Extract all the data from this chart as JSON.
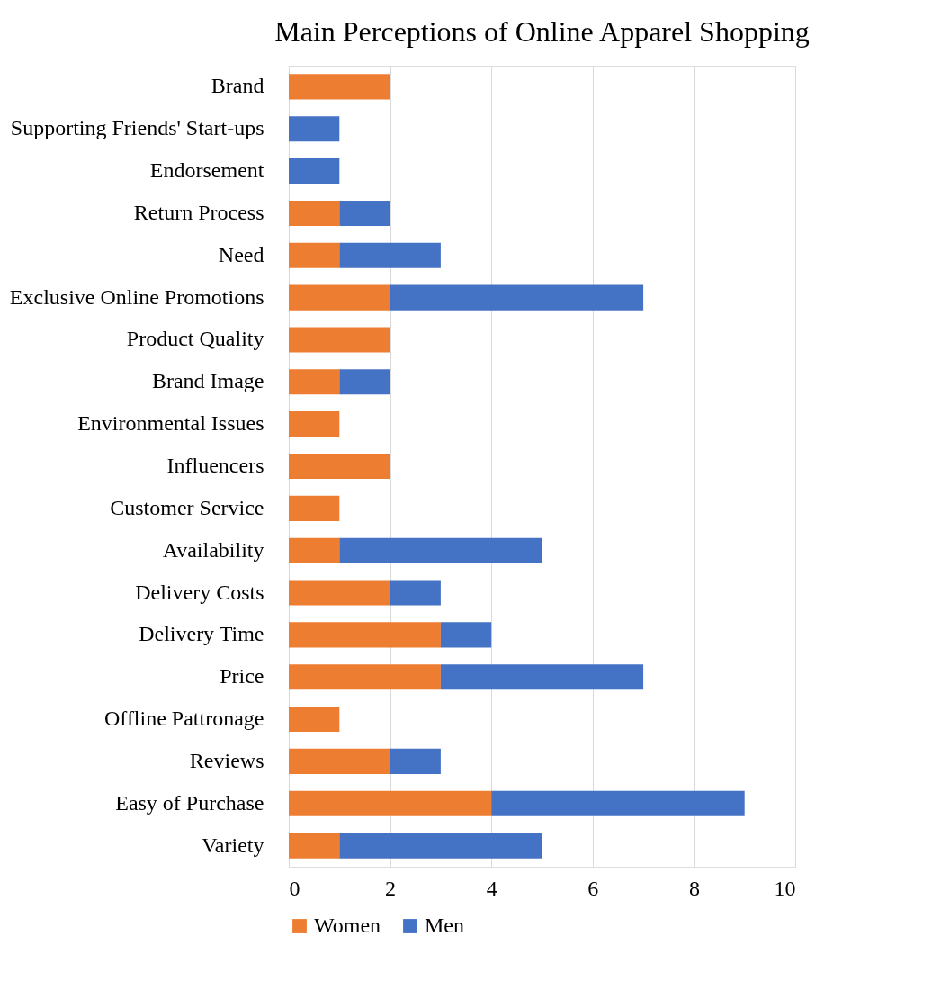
{
  "chart_data": {
    "type": "bar",
    "title": "Main Perceptions of Online Apparel Shopping",
    "orientation": "horizontal",
    "stacked": true,
    "categories": [
      "Brand",
      "Supporting Friends' Start-ups",
      "Endorsement",
      "Return Process",
      "Need",
      "Exclusive Online Promotions",
      "Product Quality",
      "Brand Image",
      "Environmental Issues",
      "Influencers",
      "Customer Service",
      "Availability",
      "Delivery Costs",
      "Delivery Time",
      "Price",
      "Offline Pattronage",
      "Reviews",
      "Easy of Purchase",
      "Variety"
    ],
    "series": [
      {
        "name": "Women",
        "color": "#ed7d31",
        "values": [
          2,
          null,
          null,
          1,
          1,
          2,
          2,
          1,
          1,
          2,
          1,
          1,
          2,
          3,
          3,
          1,
          2,
          4,
          1
        ]
      },
      {
        "name": "Men",
        "color": "#4472c4",
        "values": [
          null,
          1,
          1,
          1,
          2,
          5,
          null,
          1,
          null,
          null,
          null,
          4,
          1,
          1,
          4,
          null,
          1,
          5,
          4
        ]
      }
    ],
    "xlim": [
      0,
      10
    ],
    "xticks": [
      0,
      2,
      4,
      6,
      8,
      10
    ],
    "grid": "x",
    "legend": "bottom"
  }
}
